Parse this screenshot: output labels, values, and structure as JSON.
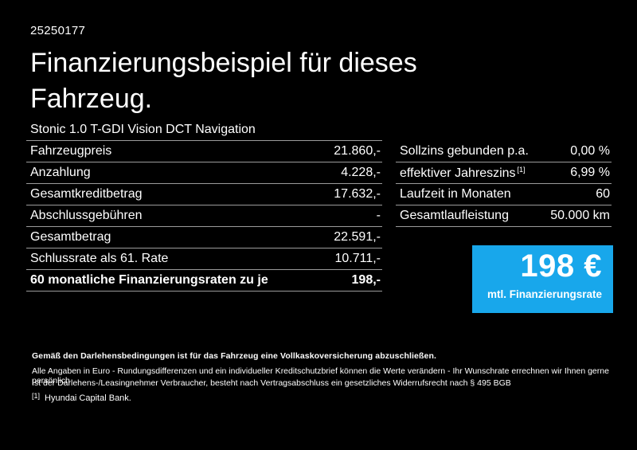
{
  "page": {
    "background": "#000000",
    "text_color": "#ffffff",
    "divider_color": "#9b9b9b"
  },
  "header": {
    "document_number": "25250177",
    "title": "Finanzierungsbeispiel für dieses Fahrzeug."
  },
  "vehicle": {
    "model": "Stonic 1.0 T-GDI Vision DCT Navigation"
  },
  "financing_table": {
    "rows": [
      {
        "label": "Fahrzeugpreis",
        "value": "21.860,-"
      },
      {
        "label": "Anzahlung",
        "value": "4.228,-"
      },
      {
        "label": "Gesamtkreditbetrag",
        "value": "17.632,-"
      },
      {
        "label": "Abschlussgebühren",
        "value": "-"
      },
      {
        "label": "Gesamtbetrag",
        "value": "22.591,-"
      },
      {
        "label": "Schlussrate als 61. Rate",
        "value": "10.711,-"
      },
      {
        "label": "60 monatliche Finanzierungsraten zu je",
        "value": "198,-"
      }
    ]
  },
  "conditions_table": {
    "rows": [
      {
        "label": "Sollzins gebunden p.a.",
        "value": "0,00 %"
      },
      {
        "label": "effektiver Jahreszins",
        "footnote_marker": "[1]",
        "value": "6,99 %"
      },
      {
        "label": "Laufzeit in Monaten",
        "value": "60"
      },
      {
        "label": "Gesamtlaufleistung",
        "value": "50.000 km"
      }
    ]
  },
  "rate_box": {
    "amount": "198 €",
    "caption": "mtl. Finanzierungsrate",
    "background": "#18a7eb"
  },
  "footer": {
    "insurance_note": "Gemäß den Darlehensbedingungen ist für das Fahrzeug eine Vollkaskoversicherung abzuschließen.",
    "note_line_1": "Alle Angaben in Euro - Rundungsdifferenzen und ein individueller Kreditschutzbrief können die Werte verändern - Ihr Wunschrate errechnen wir Ihnen gerne persönlich",
    "note_line_2": "Ist der Darlehens-/Leasingnehmer Verbraucher, besteht nach Vertragsabschluss ein gesetzliches Widerrufsrecht nach § 495 BGB",
    "footnote_marker": "[1]",
    "footnote_text": "Hyundai Capital Bank."
  }
}
